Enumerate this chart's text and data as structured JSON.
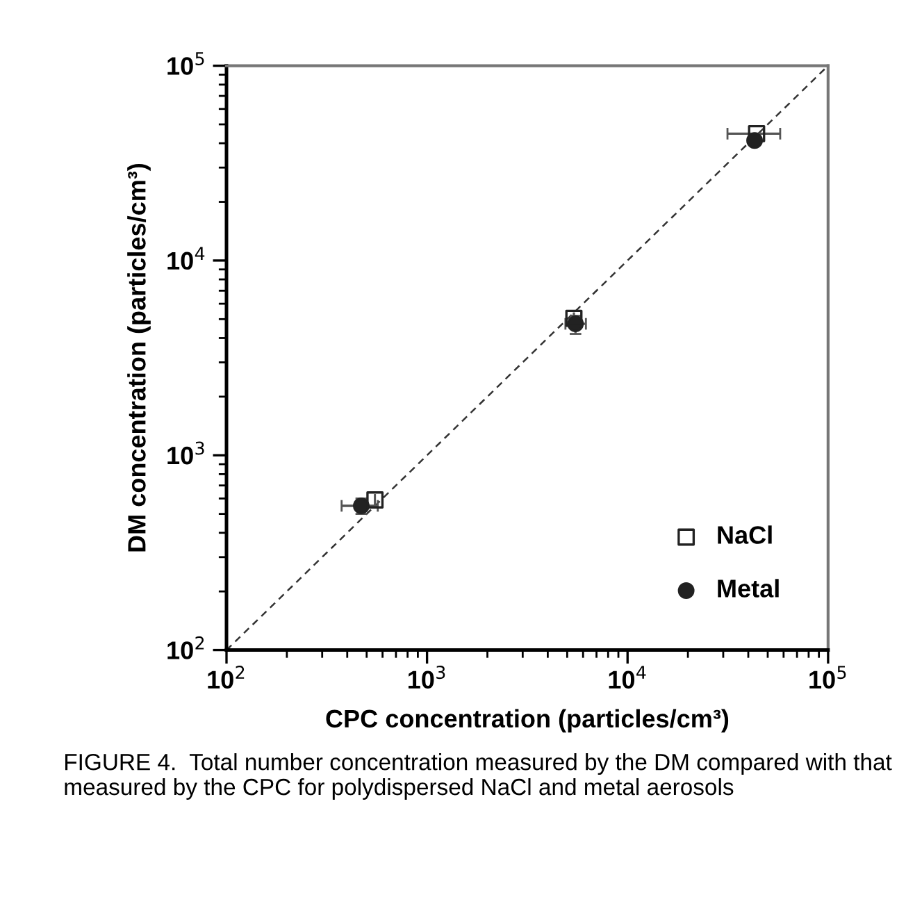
{
  "chart_data": {
    "type": "scatter",
    "xlabel": "CPC concentration (particles/cm³)",
    "ylabel": "DM concentration (particles/cm³)",
    "log": "xy",
    "xlim": [
      100,
      100000
    ],
    "ylim": [
      100,
      100000
    ],
    "xticks": [
      {
        "value": 100,
        "label": "10$^{2}$"
      },
      {
        "value": 1000,
        "label": "10$^{3}$"
      },
      {
        "value": 10000,
        "label": "10$^{4}$"
      },
      {
        "value": 100000,
        "label": "10$^{5}$"
      }
    ],
    "yticks": [
      {
        "value": 100,
        "label": "10$^{2}$"
      },
      {
        "value": 1000,
        "label": "10$^{3}$"
      },
      {
        "value": 10000,
        "label": "10$^{4}$"
      },
      {
        "value": 100000,
        "label": "10$^{5}$"
      }
    ],
    "grid": false,
    "legend": "bottom right",
    "series": [
      {
        "type": "line",
        "color": "#333333",
        "line_style": "dashed",
        "marker": "none",
        "x": [
          100,
          100000
        ],
        "values": [
          100,
          100000
        ]
      },
      {
        "name": "NaCl",
        "color": "#222222",
        "marker": "square",
        "x": [
          550,
          5400,
          44000
        ],
        "values": [
          590,
          5050,
          44800
        ],
        "xerrors": [
          null,
          null,
          [
            31500,
            57700
          ]
        ]
      },
      {
        "name": "Metal",
        "color": "#222222",
        "marker": "circle",
        "x": [
          470,
          5500,
          43000
        ],
        "values": [
          550,
          4730,
          41300
        ],
        "xerrors": [
          [
            375,
            568
          ],
          [
            4900,
            6200
          ],
          null
        ],
        "errors": [
          [
            500,
            600
          ],
          [
            4200,
            5200
          ],
          null
        ]
      }
    ],
    "annotations": [
      "FIGURE 4.  Total number concentration measured by the DM compared with that measured by the CPC for polydispersed NaCl and metal aerosols"
    ]
  }
}
